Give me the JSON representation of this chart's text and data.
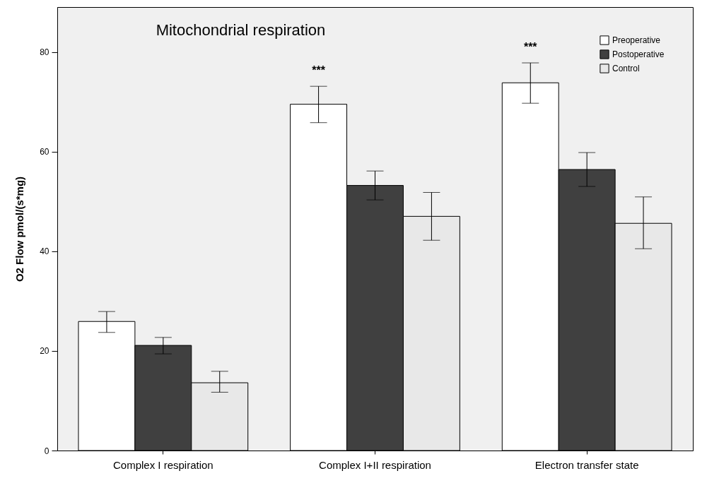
{
  "chart_data": {
    "type": "bar",
    "title": "Mitochondrial respiration",
    "ylabel": "O2 Flow  pmol/(s*mg)",
    "categories": [
      "Complex I respiration",
      "Complex  I+II respiration",
      "Electron transfer state"
    ],
    "series": [
      {
        "name": "Preoperative",
        "color": "#ffffff",
        "values": [
          25.9,
          69.5,
          73.8
        ],
        "errors": [
          [
            23.7,
            27.9
          ],
          [
            65.8,
            73.1
          ],
          [
            69.7,
            77.8
          ]
        ]
      },
      {
        "name": "Postoperative",
        "color": "#404040",
        "values": [
          21.1,
          53.2,
          56.4
        ],
        "errors": [
          [
            19.4,
            22.7
          ],
          [
            50.3,
            56.1
          ],
          [
            53.0,
            59.8
          ]
        ]
      },
      {
        "name": "Control",
        "color": "#e8e8e8",
        "values": [
          13.6,
          47.0,
          45.6
        ],
        "errors": [
          [
            11.7,
            15.9
          ],
          [
            42.2,
            51.8
          ],
          [
            40.5,
            50.9
          ]
        ]
      }
    ],
    "ylim": [
      0,
      89
    ],
    "yticks": [
      0,
      20,
      40,
      60,
      80
    ],
    "grid": false,
    "legend": "top right",
    "annotations": [
      "***",
      "***"
    ]
  }
}
